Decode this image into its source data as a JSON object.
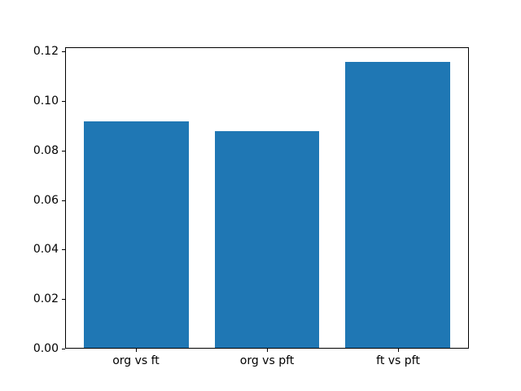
{
  "figure": {
    "background": "#ffffff"
  },
  "chart_data": {
    "type": "bar",
    "categories": [
      "org vs ft",
      "org vs pft",
      "ft vs pft"
    ],
    "values": [
      0.0917,
      0.088,
      0.116
    ],
    "title": "",
    "xlabel": "",
    "ylabel": "",
    "ylim": [
      0,
      0.1218
    ],
    "yticks": [
      0.0,
      0.02,
      0.04,
      0.06,
      0.08,
      0.1,
      0.12
    ],
    "ytick_labels": [
      "0.00",
      "0.02",
      "0.04",
      "0.06",
      "0.08",
      "0.10",
      "0.12"
    ],
    "bar_color": "#1f77b4",
    "axis_color": "#000000",
    "grid": false,
    "legend": "none"
  }
}
